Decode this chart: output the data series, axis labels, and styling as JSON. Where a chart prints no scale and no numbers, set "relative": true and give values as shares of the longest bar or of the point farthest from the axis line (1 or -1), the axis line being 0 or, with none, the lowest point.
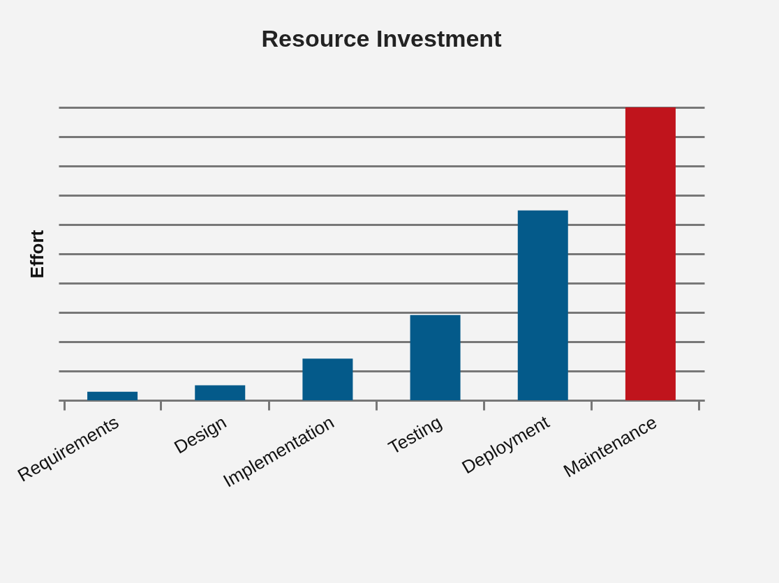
{
  "chart_data": {
    "type": "bar",
    "title": "Resource Investment",
    "ylabel": "Effort",
    "relative": true,
    "categories": [
      "Requirements",
      "Design",
      "Implementation",
      "Testing",
      "Deployment",
      "Maintenance"
    ],
    "values": [
      0.029,
      0.051,
      0.142,
      0.291,
      0.648,
      1
    ],
    "colors": [
      "#045a8a",
      "#045a8a",
      "#045a8a",
      "#045a8a",
      "#045a8a",
      "#c0141c"
    ],
    "grid": "y"
  }
}
